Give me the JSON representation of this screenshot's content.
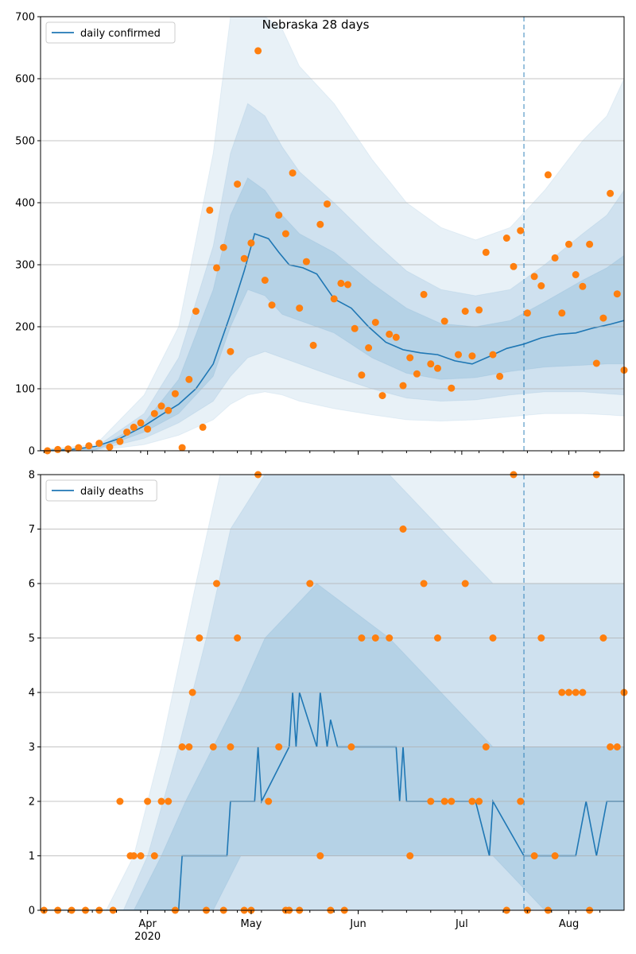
{
  "chart_data": [
    {
      "type": "line",
      "title": "Nebraska 28 days",
      "legend": {
        "label": "daily confirmed",
        "placement": "top-left"
      },
      "ylim": [
        0,
        700
      ],
      "yticks": [
        0,
        100,
        200,
        300,
        400,
        500,
        600,
        700
      ],
      "grid": "horizontal",
      "forecast_start": "2020-07-19",
      "bands_outer": {
        "x": [
          "2020-03-03",
          "2020-03-17",
          "2020-03-31",
          "2020-04-10",
          "2020-04-20",
          "2020-04-25",
          "2020-04-30",
          "2020-05-05",
          "2020-05-10",
          "2020-05-15",
          "2020-05-25",
          "2020-06-05",
          "2020-06-15",
          "2020-06-25",
          "2020-07-05",
          "2020-07-15",
          "2020-07-25",
          "2020-08-05",
          "2020-08-12",
          "2020-08-17"
        ],
        "upper": [
          3,
          10,
          90,
          200,
          480,
          700,
          700,
          700,
          680,
          620,
          560,
          470,
          400,
          360,
          340,
          360,
          420,
          500,
          540,
          600
        ],
        "lower": [
          0,
          0,
          10,
          25,
          50,
          75,
          90,
          95,
          90,
          80,
          68,
          58,
          50,
          48,
          50,
          55,
          60,
          60,
          58,
          56
        ]
      },
      "bands_middle": {
        "x": [
          "2020-03-03",
          "2020-03-17",
          "2020-03-31",
          "2020-04-10",
          "2020-04-20",
          "2020-04-25",
          "2020-04-30",
          "2020-05-05",
          "2020-05-10",
          "2020-05-15",
          "2020-05-25",
          "2020-06-05",
          "2020-06-15",
          "2020-06-25",
          "2020-07-05",
          "2020-07-15",
          "2020-07-25",
          "2020-08-05",
          "2020-08-12",
          "2020-08-17"
        ],
        "upper": [
          2,
          6,
          60,
          150,
          330,
          480,
          560,
          540,
          490,
          450,
          400,
          340,
          290,
          260,
          250,
          260,
          300,
          350,
          380,
          420
        ],
        "lower": [
          0,
          1,
          20,
          45,
          80,
          120,
          150,
          160,
          150,
          140,
          120,
          100,
          85,
          80,
          82,
          90,
          95,
          95,
          92,
          90
        ]
      },
      "bands_inner": {
        "x": [
          "2020-03-03",
          "2020-03-17",
          "2020-03-31",
          "2020-04-10",
          "2020-04-20",
          "2020-04-25",
          "2020-04-30",
          "2020-05-05",
          "2020-05-10",
          "2020-05-15",
          "2020-05-25",
          "2020-06-05",
          "2020-06-15",
          "2020-06-25",
          "2020-07-05",
          "2020-07-15",
          "2020-07-25",
          "2020-08-05",
          "2020-08-12",
          "2020-08-17"
        ],
        "upper": [
          1,
          4,
          45,
          115,
          260,
          380,
          440,
          420,
          380,
          350,
          320,
          270,
          230,
          205,
          200,
          210,
          240,
          275,
          295,
          315
        ],
        "lower": [
          0,
          2,
          30,
          60,
          120,
          200,
          260,
          250,
          220,
          210,
          190,
          150,
          125,
          115,
          118,
          128,
          135,
          138,
          140,
          140
        ]
      },
      "series": [
        {
          "name": "daily confirmed",
          "x": [
            "2020-03-01",
            "2020-03-10",
            "2020-03-17",
            "2020-03-24",
            "2020-03-31",
            "2020-04-05",
            "2020-04-10",
            "2020-04-15",
            "2020-04-20",
            "2020-04-25",
            "2020-04-29",
            "2020-05-02",
            "2020-05-06",
            "2020-05-09",
            "2020-05-12",
            "2020-05-16",
            "2020-05-20",
            "2020-05-25",
            "2020-05-30",
            "2020-06-04",
            "2020-06-09",
            "2020-06-14",
            "2020-06-19",
            "2020-06-24",
            "2020-06-29",
            "2020-07-04",
            "2020-07-09",
            "2020-07-14",
            "2020-07-19",
            "2020-07-24",
            "2020-07-29",
            "2020-08-03",
            "2020-08-08",
            "2020-08-13",
            "2020-08-17"
          ],
          "values": [
            0,
            2,
            7,
            20,
            40,
            58,
            75,
            100,
            140,
            220,
            290,
            350,
            342,
            320,
            300,
            295,
            285,
            245,
            230,
            200,
            175,
            163,
            158,
            155,
            145,
            140,
            152,
            165,
            172,
            182,
            188,
            190,
            198,
            204,
            210
          ]
        },
        {
          "name": "",
          "type": "scatter",
          "x": [
            "2020-03-03",
            "2020-03-06",
            "2020-03-09",
            "2020-03-12",
            "2020-03-15",
            "2020-03-18",
            "2020-03-21",
            "2020-03-24",
            "2020-03-26",
            "2020-03-28",
            "2020-03-30",
            "2020-04-01",
            "2020-04-03",
            "2020-04-05",
            "2020-04-07",
            "2020-04-09",
            "2020-04-11",
            "2020-04-13",
            "2020-04-15",
            "2020-04-17",
            "2020-04-19",
            "2020-04-21",
            "2020-04-23",
            "2020-04-25",
            "2020-04-27",
            "2020-04-29",
            "2020-05-01",
            "2020-05-03",
            "2020-05-05",
            "2020-05-07",
            "2020-05-09",
            "2020-05-11",
            "2020-05-13",
            "2020-05-15",
            "2020-05-17",
            "2020-05-19",
            "2020-05-21",
            "2020-05-23",
            "2020-05-25",
            "2020-05-27",
            "2020-05-29",
            "2020-05-31",
            "2020-06-02",
            "2020-06-04",
            "2020-06-06",
            "2020-06-08",
            "2020-06-10",
            "2020-06-12",
            "2020-06-14",
            "2020-06-16",
            "2020-06-18",
            "2020-06-20",
            "2020-06-22",
            "2020-06-24",
            "2020-06-26",
            "2020-06-28",
            "2020-06-30",
            "2020-07-02",
            "2020-07-04",
            "2020-07-06",
            "2020-07-08",
            "2020-07-10",
            "2020-07-12",
            "2020-07-14",
            "2020-07-16",
            "2020-07-18",
            "2020-07-20",
            "2020-07-22",
            "2020-07-24",
            "2020-07-26",
            "2020-07-28",
            "2020-07-30",
            "2020-08-01",
            "2020-08-03",
            "2020-08-05",
            "2020-08-07",
            "2020-08-09",
            "2020-08-11",
            "2020-08-13",
            "2020-08-15",
            "2020-08-17"
          ],
          "values": [
            0,
            2,
            3,
            5,
            8,
            12,
            6,
            15,
            30,
            38,
            45,
            35,
            60,
            72,
            65,
            92,
            5,
            115,
            225,
            38,
            388,
            295,
            328,
            160,
            430,
            310,
            335,
            645,
            275,
            235,
            380,
            350,
            448,
            230,
            305,
            170,
            365,
            398,
            245,
            270,
            268,
            197,
            122,
            166,
            207,
            89,
            188,
            183,
            105,
            150,
            124,
            252,
            140,
            133,
            209,
            101,
            155,
            225,
            153,
            227,
            320,
            155,
            120,
            343,
            297,
            355,
            222,
            281,
            266,
            445,
            311,
            222,
            333,
            284,
            265,
            333,
            141,
            214,
            415,
            253,
            130
          ]
        }
      ]
    },
    {
      "type": "line",
      "legend": {
        "label": "daily deaths",
        "placement": "top-left"
      },
      "ylim": [
        0,
        8
      ],
      "yticks": [
        0,
        1,
        2,
        3,
        4,
        5,
        6,
        7,
        8
      ],
      "grid": "horizontal",
      "xticks": [
        "Apr\n2020",
        "May",
        "Jun",
        "Jul",
        "Aug"
      ],
      "forecast_start": "2020-07-19",
      "bands_outer": {
        "x": [
          "2020-03-01",
          "2020-03-20",
          "2020-03-28",
          "2020-04-05",
          "2020-04-15",
          "2020-04-22",
          "2020-05-01",
          "2020-05-20",
          "2020-06-10",
          "2020-06-25",
          "2020-07-10",
          "2020-07-25",
          "2020-08-10",
          "2020-08-17"
        ],
        "upper": [
          0,
          0,
          1,
          3,
          6,
          8,
          8,
          8,
          8,
          8,
          8,
          8,
          8,
          8
        ],
        "lower": [
          0,
          0,
          0,
          0,
          0,
          0,
          0,
          0,
          0,
          0,
          0,
          0,
          0,
          0
        ]
      },
      "bands_middle": {
        "x": [
          "2020-03-01",
          "2020-03-25",
          "2020-04-01",
          "2020-04-10",
          "2020-04-18",
          "2020-04-25",
          "2020-05-05",
          "2020-05-20",
          "2020-06-10",
          "2020-06-25",
          "2020-07-10",
          "2020-07-25",
          "2020-08-10",
          "2020-08-17"
        ],
        "upper": [
          0,
          0,
          1,
          3,
          5,
          7,
          8,
          8,
          8,
          7,
          6,
          6,
          6,
          6
        ],
        "lower": [
          0,
          0,
          0,
          0,
          0,
          0,
          0,
          0,
          0,
          0,
          0,
          0,
          0,
          0
        ]
      },
      "bands_inner": {
        "x": [
          "2020-03-01",
          "2020-03-28",
          "2020-04-05",
          "2020-04-12",
          "2020-04-20",
          "2020-04-28",
          "2020-05-05",
          "2020-05-20",
          "2020-06-10",
          "2020-06-25",
          "2020-07-10",
          "2020-07-25",
          "2020-08-10",
          "2020-08-17"
        ],
        "upper": [
          0,
          0,
          1,
          2,
          3,
          4,
          5,
          6,
          5,
          4,
          3,
          3,
          3,
          3
        ],
        "lower": [
          0,
          0,
          0,
          0,
          0,
          1,
          1,
          1,
          1,
          1,
          1,
          0,
          0,
          0
        ]
      },
      "series": [
        {
          "name": "daily deaths",
          "x": [
            "2020-03-01",
            "2020-04-10",
            "2020-04-11",
            "2020-04-24",
            "2020-04-25",
            "2020-05-02",
            "2020-05-03",
            "2020-05-04",
            "2020-05-12",
            "2020-05-13",
            "2020-05-14",
            "2020-05-15",
            "2020-05-20",
            "2020-05-21",
            "2020-05-23",
            "2020-05-24",
            "2020-05-26",
            "2020-06-12",
            "2020-06-13",
            "2020-06-14",
            "2020-06-15",
            "2020-07-05",
            "2020-07-09",
            "2020-07-10",
            "2020-07-19",
            "2020-08-03",
            "2020-08-06",
            "2020-08-09",
            "2020-08-12",
            "2020-08-17"
          ],
          "values": [
            0,
            0,
            1,
            1,
            2,
            2,
            3,
            2,
            3,
            4,
            3,
            4,
            3,
            4,
            3,
            3.5,
            3,
            3,
            2,
            3,
            2,
            2,
            1,
            2,
            1,
            1,
            2,
            1,
            2,
            2
          ]
        },
        {
          "name": "",
          "type": "scatter",
          "x": [
            "2020-03-02",
            "2020-03-06",
            "2020-03-10",
            "2020-03-14",
            "2020-03-18",
            "2020-03-22",
            "2020-03-24",
            "2020-03-27",
            "2020-03-28",
            "2020-03-30",
            "2020-04-01",
            "2020-04-03",
            "2020-04-05",
            "2020-04-07",
            "2020-04-09",
            "2020-04-11",
            "2020-04-13",
            "2020-04-14",
            "2020-04-16",
            "2020-04-18",
            "2020-04-20",
            "2020-04-21",
            "2020-04-23",
            "2020-04-25",
            "2020-04-27",
            "2020-04-29",
            "2020-05-01",
            "2020-05-03",
            "2020-05-06",
            "2020-05-09",
            "2020-05-11",
            "2020-05-12",
            "2020-05-15",
            "2020-05-18",
            "2020-05-21",
            "2020-05-24",
            "2020-05-28",
            "2020-05-30",
            "2020-06-02",
            "2020-06-06",
            "2020-06-10",
            "2020-06-14",
            "2020-06-16",
            "2020-06-20",
            "2020-06-22",
            "2020-06-24",
            "2020-06-26",
            "2020-06-28",
            "2020-07-02",
            "2020-07-04",
            "2020-07-06",
            "2020-07-08",
            "2020-07-10",
            "2020-07-14",
            "2020-07-16",
            "2020-07-18",
            "2020-07-20",
            "2020-07-22",
            "2020-07-24",
            "2020-07-26",
            "2020-07-28",
            "2020-07-30",
            "2020-08-01",
            "2020-08-03",
            "2020-08-05",
            "2020-08-07",
            "2020-08-09",
            "2020-08-11",
            "2020-08-13",
            "2020-08-15",
            "2020-08-17"
          ],
          "values": [
            0,
            0,
            0,
            0,
            0,
            0,
            2,
            1,
            1,
            1,
            2,
            1,
            2,
            2,
            0,
            3,
            3,
            4,
            5,
            0,
            3,
            6,
            0,
            3,
            5,
            0,
            0,
            8,
            2,
            3,
            0,
            0,
            0,
            6,
            1,
            0,
            0,
            3,
            5,
            5,
            5,
            7,
            1,
            6,
            2,
            5,
            2,
            2,
            6,
            2,
            2,
            3,
            5,
            0,
            8,
            2,
            0,
            1,
            5,
            0,
            1,
            4,
            4,
            4,
            4,
            0,
            8,
            5,
            3,
            3,
            4
          ]
        }
      ]
    }
  ]
}
